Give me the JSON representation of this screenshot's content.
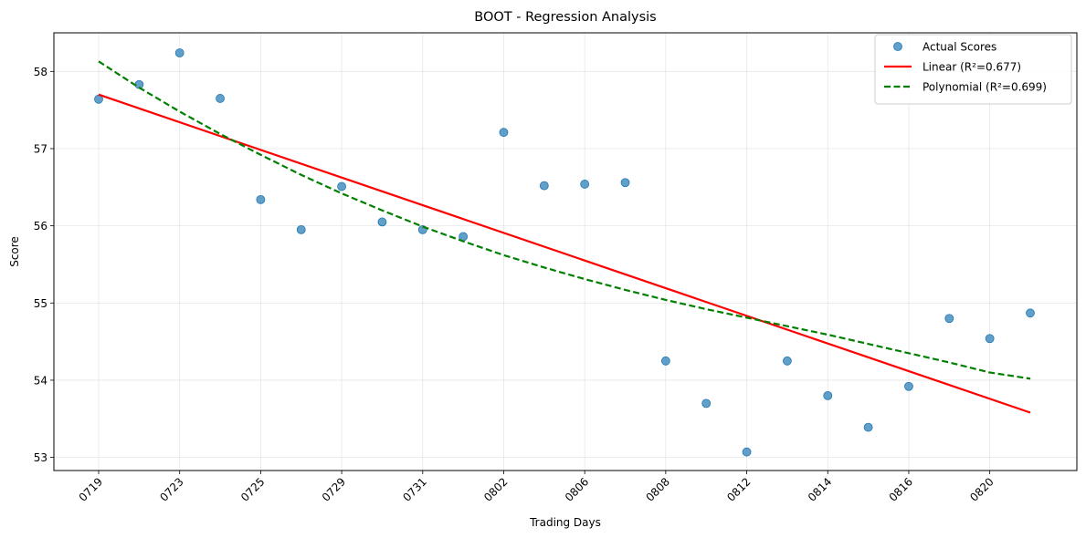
{
  "chart_data": {
    "type": "scatter",
    "title": "BOOT - Regression Analysis",
    "xlabel": "Trading Days",
    "ylabel": "Score",
    "x_tick_labels": [
      "0719",
      "0723",
      "0725",
      "0729",
      "0731",
      "0802",
      "0806",
      "0808",
      "0812",
      "0814",
      "0816",
      "0820"
    ],
    "y_ticks": [
      53,
      54,
      55,
      56,
      57,
      58
    ],
    "ylim": [
      52.83,
      58.5
    ],
    "grid": true,
    "legend_position": "upper right",
    "series": [
      {
        "name": "Actual Scores",
        "kind": "scatter",
        "color": "#1f77b4",
        "y": [
          57.64,
          57.83,
          58.24,
          57.65,
          56.34,
          55.95,
          56.51,
          56.05,
          55.95,
          55.86,
          57.21,
          56.52,
          56.54,
          56.56,
          54.25,
          53.7,
          53.07,
          54.25,
          53.8,
          53.39,
          53.92,
          54.8,
          54.54,
          54.87
        ]
      },
      {
        "name": "Linear (R²=0.677)",
        "kind": "line",
        "style": "solid",
        "color": "#ff0000",
        "y_start": 57.7,
        "y_end": 53.58
      },
      {
        "name": "Polynomial (R²=0.699)",
        "kind": "line",
        "style": "dashed",
        "color": "#008000",
        "y": [
          58.13,
          57.79,
          57.48,
          57.19,
          56.92,
          56.66,
          56.42,
          56.2,
          55.99,
          55.8,
          55.62,
          55.46,
          55.31,
          55.17,
          55.04,
          54.92,
          54.81,
          54.7,
          54.59,
          54.47,
          54.35,
          54.23,
          54.1,
          54.02
        ]
      }
    ]
  }
}
